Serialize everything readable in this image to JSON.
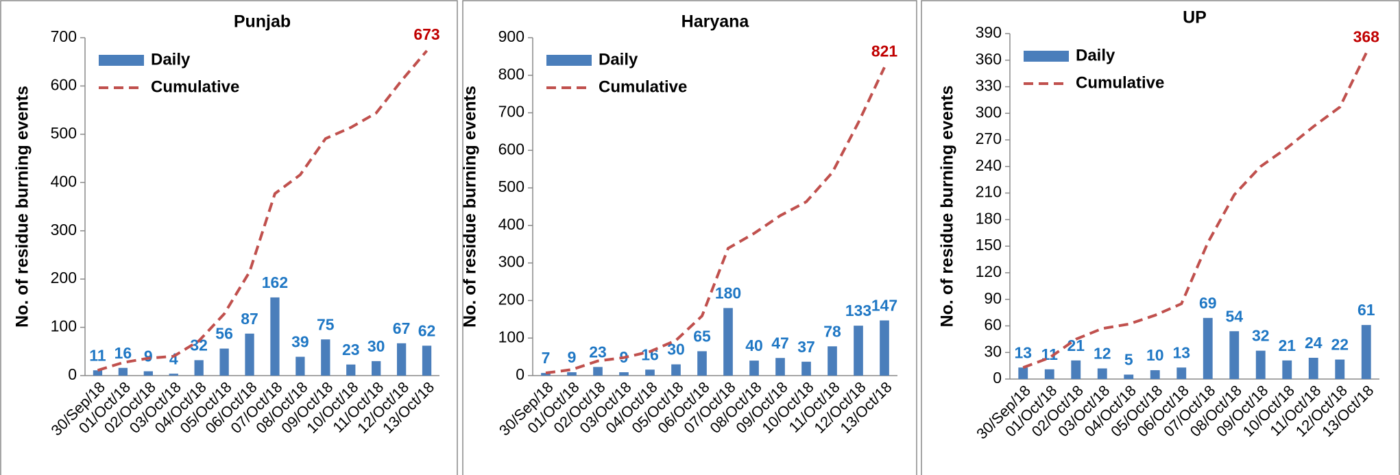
{
  "chart_data": [
    {
      "type": "bar-line",
      "title": "Punjab",
      "y_label": "No. of residue burning events",
      "categories": [
        "30/Sep/18",
        "01/Oct/18",
        "02/Oct/18",
        "03/Oct/18",
        "04/Oct/18",
        "05/Oct/18",
        "06/Oct/18",
        "07/Oct/18",
        "08/Oct/18",
        "09/Oct/18",
        "10/Oct/18",
        "11/Oct/18",
        "12/Oct/18",
        "13/Oct/18"
      ],
      "series": [
        {
          "name": "Daily",
          "color": "#4a7ebb",
          "kind": "bar",
          "values": [
            11,
            16,
            9,
            4,
            32,
            56,
            87,
            162,
            39,
            75,
            23,
            30,
            67,
            62
          ]
        },
        {
          "name": "Cumulative",
          "color": "#c0504d",
          "kind": "line",
          "values": [
            11,
            27,
            36,
            40,
            72,
            128,
            215,
            377,
            416,
            491,
            514,
            544,
            611,
            673
          ]
        }
      ],
      "ylim": [
        0,
        700
      ],
      "yticks": [
        0,
        100,
        200,
        300,
        400,
        500,
        600,
        700
      ],
      "legend": "upper left"
    },
    {
      "type": "bar-line",
      "title": "Haryana",
      "y_label": "No. of residue burning  events",
      "categories": [
        "30/Sep/18",
        "01/Oct/18",
        "02/Oct/18",
        "03/Oct/18",
        "04/Oct/18",
        "05/Oct/18",
        "06/Oct/18",
        "07/Oct/18",
        "08/Oct/18",
        "09/Oct/18",
        "10/Oct/18",
        "11/Oct/18",
        "12/Oct/18",
        "13/Oct/18"
      ],
      "series": [
        {
          "name": "Daily",
          "color": "#4a7ebb",
          "kind": "bar",
          "values": [
            7,
            9,
            23,
            9,
            16,
            30,
            65,
            180,
            40,
            47,
            37,
            78,
            133,
            147
          ]
        },
        {
          "name": "Cumulative",
          "color": "#c0504d",
          "kind": "line",
          "values": [
            7,
            16,
            39,
            48,
            64,
            94,
            159,
            339,
            379,
            426,
            463,
            541,
            674,
            821
          ]
        }
      ],
      "ylim": [
        0,
        900
      ],
      "yticks": [
        0,
        100,
        200,
        300,
        400,
        500,
        600,
        700,
        800,
        900
      ],
      "legend": "upper left"
    },
    {
      "type": "bar-line",
      "title": "UP",
      "y_label": "No. of residue burning events",
      "categories": [
        "30/Sep/18",
        "01/Oct/18",
        "02/Oct/18",
        "03/Oct/18",
        "04/Oct/18",
        "05/Oct/18",
        "06/Oct/18",
        "07/Oct/18",
        "08/Oct/18",
        "09/Oct/18",
        "10/Oct/18",
        "11/Oct/18",
        "12/Oct/18",
        "13/Oct/18"
      ],
      "series": [
        {
          "name": "Daily",
          "color": "#4a7ebb",
          "kind": "bar",
          "values": [
            13,
            11,
            21,
            12,
            5,
            10,
            13,
            69,
            54,
            32,
            21,
            24,
            22,
            61
          ]
        },
        {
          "name": "Cumulative",
          "color": "#c0504d",
          "kind": "line",
          "values": [
            13,
            24,
            45,
            57,
            62,
            72,
            85,
            154,
            208,
            240,
            261,
            285,
            307,
            368
          ]
        }
      ],
      "ylim": [
        0,
        390
      ],
      "yticks": [
        0,
        30,
        60,
        90,
        120,
        150,
        180,
        210,
        240,
        270,
        300,
        330,
        360,
        390
      ],
      "legend": "upper left"
    }
  ]
}
